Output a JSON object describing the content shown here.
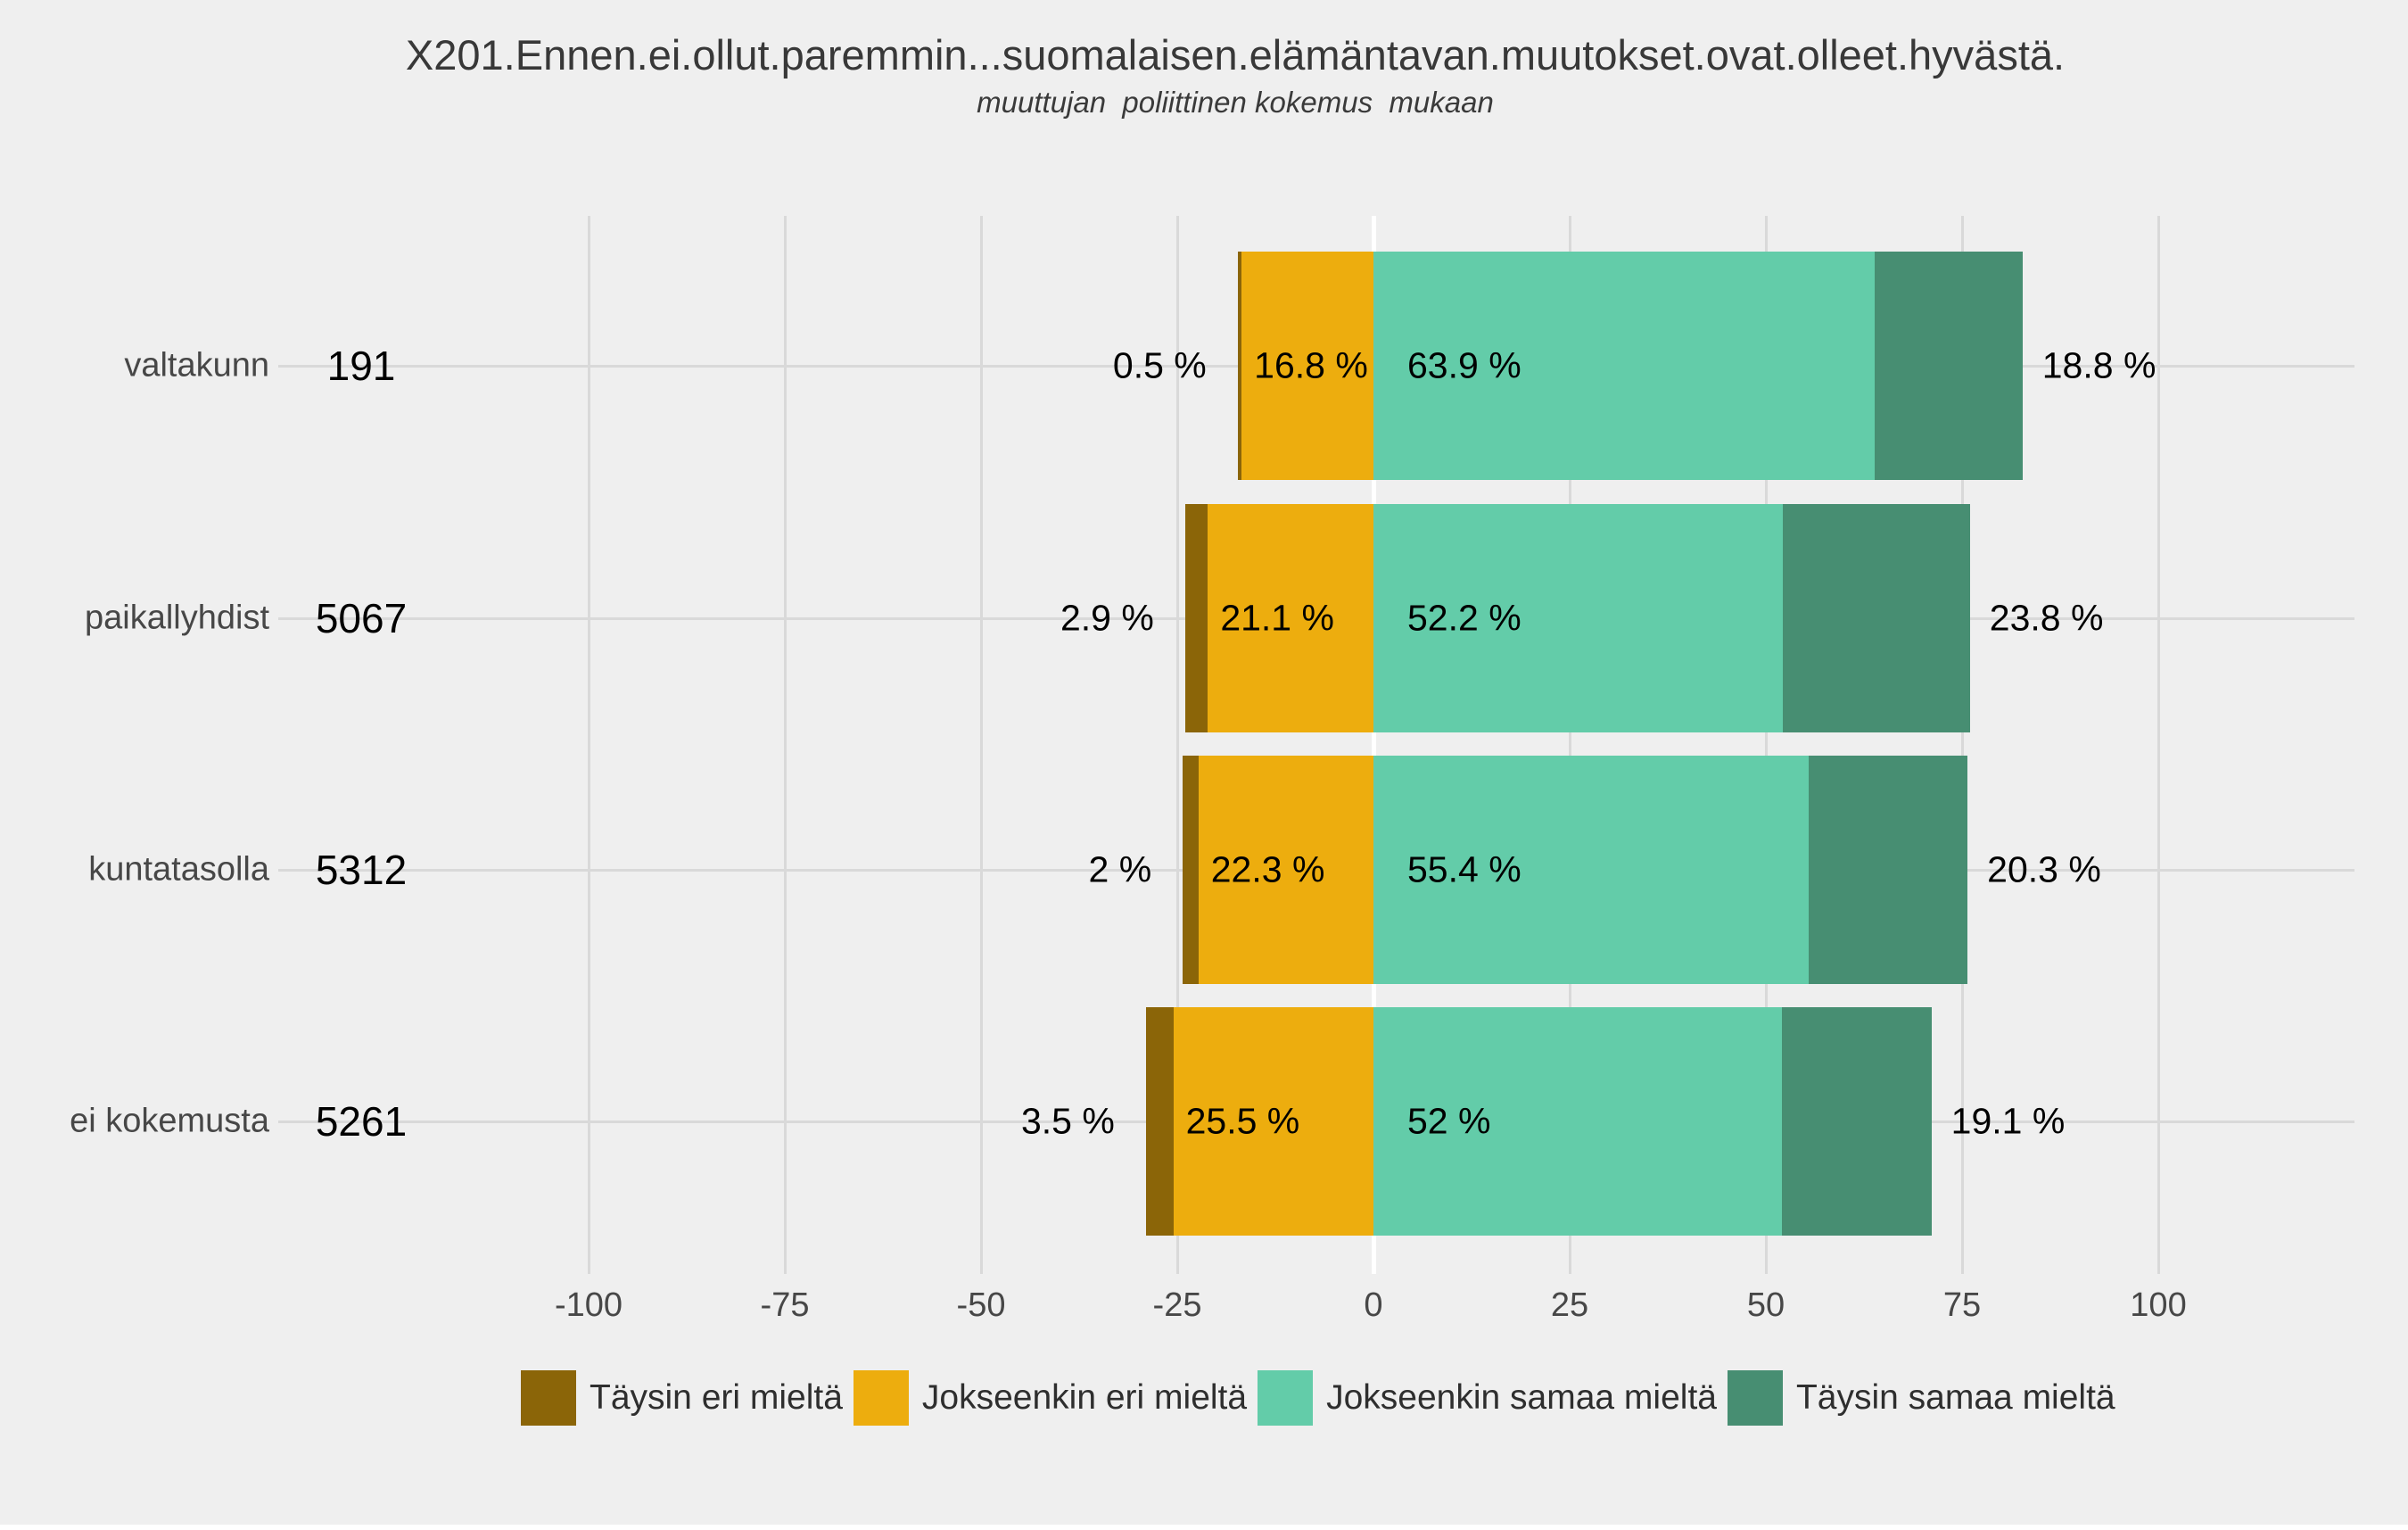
{
  "title": "X201.Ennen.ei.ollut.paremmin...suomalaisen.elämäntavan.muutokset.ovat.olleet.hyvästä.",
  "subtitle": "muuttujan  poliittinen kokemus  mukaan",
  "colors": {
    "background": "#EFEFEF",
    "gridline": "#D9D9D9",
    "zero_line": "#FFFFFF",
    "taysin_eri_mielta": "#8B6508",
    "jokseenkin_eri_mielta": "#EDAD0E",
    "jokseenkin_samaa_mielta": "#63CCA9",
    "taysin_samaa_mielta": "#478E72"
  },
  "legend": [
    {
      "label": "Täysin eri mieltä",
      "color": "#8B6508"
    },
    {
      "label": "Jokseenkin eri mieltä",
      "color": "#EDAD0E"
    },
    {
      "label": "Jokseenkin samaa mieltä",
      "color": "#63CCA9"
    },
    {
      "label": "Täysin samaa mieltä",
      "color": "#478E72"
    }
  ],
  "chart_data": {
    "type": "bar",
    "orientation": "horizontal",
    "stacking": "diverging",
    "title": "X201.Ennen.ei.ollut.paremmin...suomalaisen.elämäntavan.muutokset.ovat.olleet.hyvästä.",
    "subtitle": "muuttujan  poliittinen kokemus  mukaan",
    "categories": [
      "valtakunn",
      "paikallyhdist",
      "kuntatasolla",
      "ei kokemusta"
    ],
    "counts": [
      "191",
      "5067",
      "5312",
      "5261"
    ],
    "x_ticks": [
      -100,
      -75,
      -50,
      -25,
      0,
      25,
      50,
      75,
      100
    ],
    "xlim": [
      -100,
      100
    ],
    "grid": true,
    "legend_position": "bottom",
    "series": [
      {
        "name": "Täysin eri mieltä",
        "color": "#8B6508",
        "side": "negative",
        "values": [
          0.5,
          2.9,
          2,
          3.5
        ],
        "labels": [
          "0.5 %",
          "2.9 %",
          "2 %",
          "3.5 %"
        ]
      },
      {
        "name": "Jokseenkin eri mieltä",
        "color": "#EDAD0E",
        "side": "negative",
        "values": [
          16.8,
          21.1,
          22.3,
          25.5
        ],
        "labels": [
          "16.8 %",
          "21.1 %",
          "22.3 %",
          "25.5 %"
        ]
      },
      {
        "name": "Jokseenkin samaa mieltä",
        "color": "#63CCA9",
        "side": "positive",
        "values": [
          63.9,
          52.2,
          55.4,
          52
        ],
        "labels": [
          "63.9 %",
          "52.2 %",
          "55.4 %",
          "52 %"
        ]
      },
      {
        "name": "Täysin samaa mieltä",
        "color": "#478E72",
        "side": "positive",
        "values": [
          18.8,
          23.8,
          20.3,
          19.1
        ],
        "labels": [
          "18.8 %",
          "23.8 %",
          "20.3 %",
          "19.1 %"
        ]
      }
    ]
  }
}
